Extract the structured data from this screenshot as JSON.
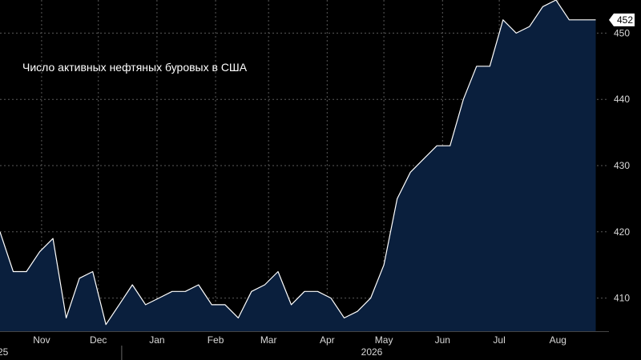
{
  "chart_data": {
    "type": "area",
    "title": "Число активных нефтяных буровых в США",
    "xlabel": "",
    "ylabel": "",
    "ylim": [
      405,
      455
    ],
    "y_ticks": [
      410,
      420,
      430,
      440,
      450
    ],
    "grid": true,
    "x_start": "2025-10-10",
    "x_end": "2026-08-28",
    "month_ticks": [
      {
        "label": "Nov",
        "date": "2025-11-01"
      },
      {
        "label": "Dec",
        "date": "2025-12-01"
      },
      {
        "label": "Jan",
        "date": "2026-01-01"
      },
      {
        "label": "Feb",
        "date": "2026-02-01"
      },
      {
        "label": "Mar",
        "date": "2026-03-01"
      },
      {
        "label": "Apr",
        "date": "2026-04-01"
      },
      {
        "label": "May",
        "date": "2026-05-01"
      },
      {
        "label": "Jun",
        "date": "2026-06-01"
      },
      {
        "label": "Jul",
        "date": "2026-07-01"
      },
      {
        "label": "Aug",
        "date": "2026-08-01"
      }
    ],
    "year_labels": [
      {
        "label": "25",
        "date": "2025-10-10"
      },
      {
        "label": "2026",
        "date": "2026-03-20"
      }
    ],
    "year_divider": "2026-01-01",
    "last_value_label": "452",
    "colors": {
      "background": "#000000",
      "fill": "#0a1f3d",
      "line": "#ffffff",
      "grid": "#5a5a5a",
      "axis_text": "#d9d9d9"
    },
    "series": [
      {
        "x": [
          "2025-10-10",
          "2025-10-17",
          "2025-10-24",
          "2025-10-31",
          "2025-11-07",
          "2025-11-14",
          "2025-11-21",
          "2025-11-28",
          "2025-12-05",
          "2025-12-12",
          "2025-12-19",
          "2025-12-26",
          "2026-01-02",
          "2026-01-09",
          "2026-01-16",
          "2026-01-23",
          "2026-01-30",
          "2026-02-06",
          "2026-02-13",
          "2026-02-20",
          "2026-02-27",
          "2026-03-06",
          "2026-03-13",
          "2026-03-20",
          "2026-03-27",
          "2026-04-03",
          "2026-04-10",
          "2026-04-17",
          "2026-04-24",
          "2026-05-01",
          "2026-05-08",
          "2026-05-15",
          "2026-05-22",
          "2026-05-29",
          "2026-06-05",
          "2026-06-12",
          "2026-06-19",
          "2026-06-26",
          "2026-07-03",
          "2026-07-10",
          "2026-07-17",
          "2026-07-24",
          "2026-07-31",
          "2026-08-07",
          "2026-08-14",
          "2026-08-21"
        ],
        "values": [
          420,
          414,
          414,
          417,
          419,
          407,
          413,
          414,
          406,
          409,
          412,
          409,
          410,
          411,
          411,
          412,
          409,
          409,
          407,
          411,
          412,
          414,
          409,
          411,
          411,
          410,
          407,
          408,
          410,
          415,
          425,
          429,
          431,
          433,
          433,
          440,
          445,
          445,
          452,
          450,
          451,
          454,
          455,
          452,
          452,
          452
        ]
      }
    ]
  }
}
